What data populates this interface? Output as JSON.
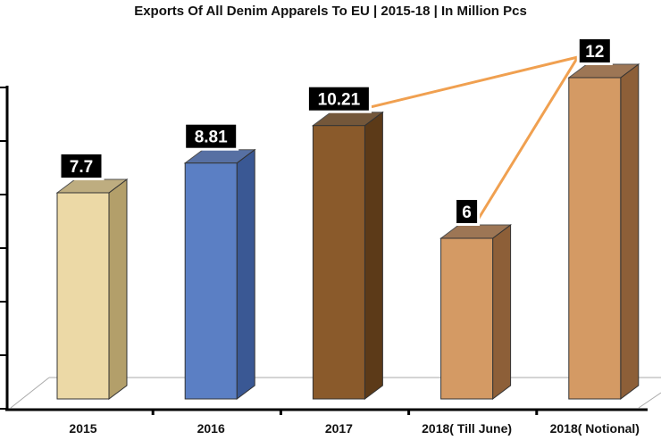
{
  "chart_data": {
    "type": "bar",
    "title": "Exports Of All Denim Apparels To EU | 2015-18 | In Million Pcs",
    "xlabel": "",
    "ylabel": "",
    "ylim": [
      0,
      12
    ],
    "grid": false,
    "categories": [
      "2015",
      "2016",
      "2017",
      "2018( Till June)",
      "2018( Notional)"
    ],
    "values": [
      7.7,
      8.81,
      10.21,
      6,
      12
    ],
    "data_labels": [
      "7.7",
      "8.81",
      "10.21",
      "6",
      "12"
    ],
    "bar_colors": [
      "#ecd9a6",
      "#5b7fc4",
      "#8a5a2b",
      "#d49a64",
      "#d49a64"
    ],
    "side_colors": [
      "#b39f6a",
      "#3a5894",
      "#5c3a18",
      "#8d5f38",
      "#8d5f38"
    ],
    "connector_color": "#f0a050",
    "connectors": [
      [
        "2017",
        "2018( Notional)"
      ],
      [
        "2018( Till June)",
        "2018( Notional)"
      ]
    ]
  }
}
